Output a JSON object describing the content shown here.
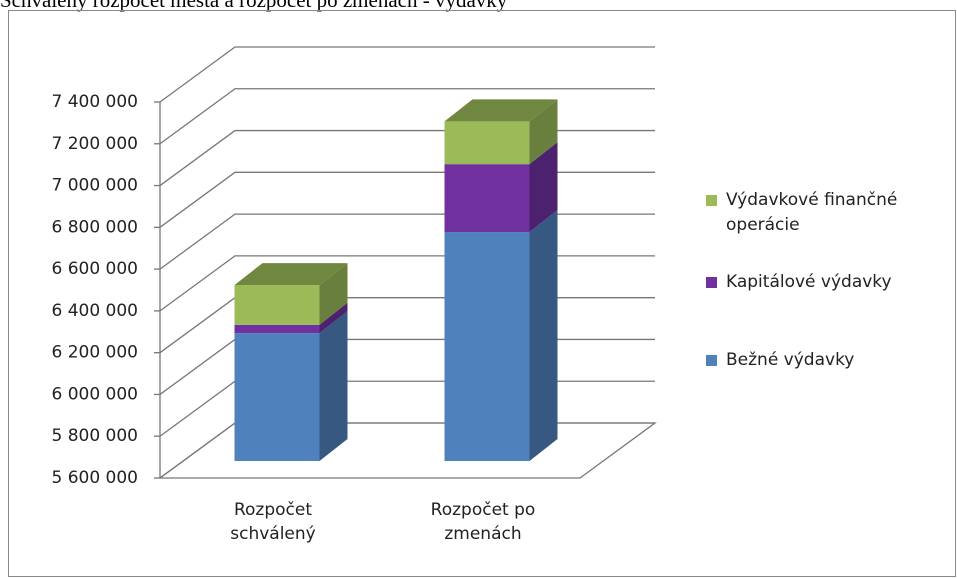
{
  "chart_data": {
    "type": "bar3d_stacked",
    "title": "Schválený rozpočet mesta a rozpočet po zmenách - výdavky",
    "categories": [
      "Rozpočet schválený",
      "Rozpočet po zmenách"
    ],
    "series": [
      {
        "name": "Bežné výdavky",
        "color": "#4f81bd",
        "values": [
          6212000,
          6696000
        ]
      },
      {
        "name": "Kapitálové výdavky",
        "color": "#7030a0",
        "values": [
          40000,
          325000
        ]
      },
      {
        "name": "Výdavkové finančné operácie",
        "color": "#9bbb59",
        "values": [
          190000,
          205000
        ]
      }
    ],
    "ylim": [
      5600000,
      7400000
    ],
    "yticks": [
      {
        "value": 5600000,
        "label": "5 600 000"
      },
      {
        "value": 5800000,
        "label": "5 800 000"
      },
      {
        "value": 6000000,
        "label": "6 000 000"
      },
      {
        "value": 6200000,
        "label": "6 200 000"
      },
      {
        "value": 6400000,
        "label": "6 400 000"
      },
      {
        "value": 6600000,
        "label": "6 600 000"
      },
      {
        "value": 6800000,
        "label": "6 800 000"
      },
      {
        "value": 7000000,
        "label": "7 000 000"
      },
      {
        "value": 7200000,
        "label": "7 200 000"
      },
      {
        "value": 7400000,
        "label": "7 400 000"
      }
    ],
    "grid": true,
    "legend": "right"
  }
}
